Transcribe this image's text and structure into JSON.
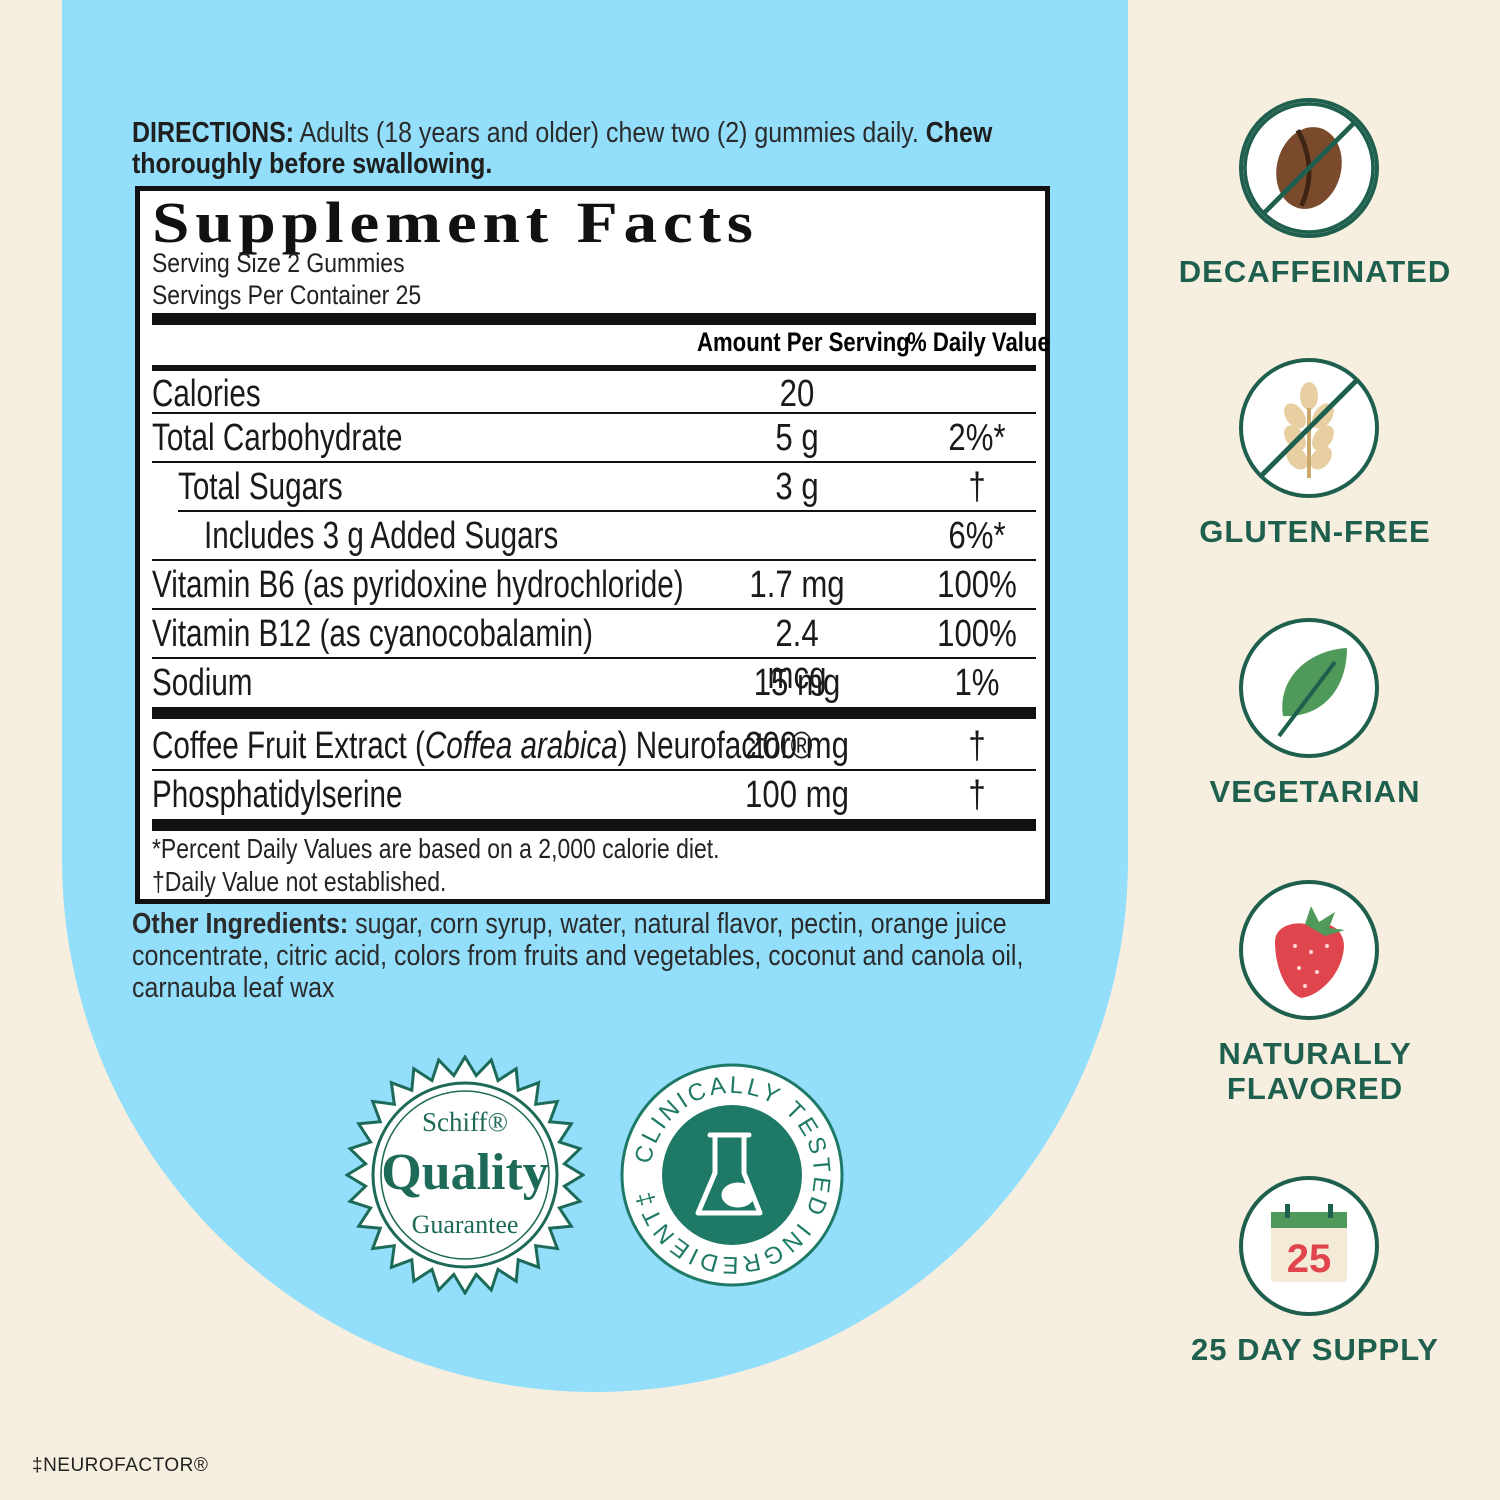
{
  "directions": {
    "lead": "DIRECTIONS:",
    "text": " Adults (18 years and older) chew two (2) gummies daily. ",
    "emphasis": "Chew thoroughly before swallowing."
  },
  "supplement_facts": {
    "title": "Supplement Facts",
    "serving_size": "Serving Size 2 Gummies",
    "servings_per_container": "Servings Per Container 25",
    "col_amount": "Amount Per Serving",
    "col_dv": "% Daily Value",
    "rows": [
      {
        "name": "Calories",
        "amount": "20",
        "dv": ""
      },
      {
        "name": "Total Carbohydrate",
        "amount": "5 g",
        "dv": "2%*"
      },
      {
        "name": "Total Sugars",
        "amount": "3 g",
        "dv": "†"
      },
      {
        "name": "Includes 3 g Added Sugars",
        "amount": "",
        "dv": "6%*"
      },
      {
        "name": "Vitamin B6 (as pyridoxine hydrochloride)",
        "amount": "1.7 mg",
        "dv": "100%"
      },
      {
        "name": "Vitamin B12 (as cyanocobalamin)",
        "amount": "2.4 mcg",
        "dv": "100%"
      },
      {
        "name": "Sodium",
        "amount": "15 mg",
        "dv": "1%"
      }
    ],
    "extra_rows": [
      {
        "name_pre": "Coffee Fruit Extract (",
        "name_italic": "Coffea arabica",
        "name_post": ") Neurofactor®",
        "amount": "200 mg",
        "dv": "†"
      },
      {
        "name": "Phosphatidylserine",
        "amount": "100 mg",
        "dv": "†"
      }
    ],
    "footnote_1": "*Percent Daily Values are based on a 2,000 calorie diet.",
    "footnote_2": "†Daily Value not established."
  },
  "other_ingredients": {
    "lead": "Other Ingredients:",
    "text": " sugar, corn syrup, water, natural flavor, pectin, orange juice concentrate, citric acid, colors from fruits and vegetables, coconut and canola oil, carnauba leaf wax"
  },
  "seals": {
    "quality": {
      "brand": "Schiff®",
      "word": "Quality",
      "sub": "Guarantee"
    },
    "clinical": {
      "text": "CLINICALLY TESTED INGREDIENT‡"
    }
  },
  "features": [
    {
      "label": "DECAFFEINATED",
      "icon": "coffee-bean-crossed-icon"
    },
    {
      "label": "GLUTEN-FREE",
      "icon": "wheat-crossed-icon"
    },
    {
      "label": "VEGETARIAN",
      "icon": "leaf-icon"
    },
    {
      "label": "NATURALLY FLAVORED",
      "icon": "strawberry-icon"
    },
    {
      "label": "25 DAY SUPPLY",
      "icon": "calendar-icon",
      "calendar_number": "25"
    }
  ],
  "footer_note": "‡NEUROFACTOR®",
  "colors": {
    "panel_blue": "#92defb",
    "background": "#f6efe0",
    "brand_green": "#1f5f4e",
    "seal_teal": "#1e7a66"
  }
}
